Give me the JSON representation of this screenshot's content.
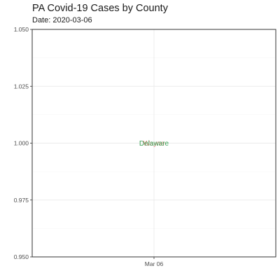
{
  "chart_data": {
    "type": "scatter",
    "title": "PA Covid-19 Cases by County",
    "subtitle": "Date: 2020-03-06",
    "xlabel": "",
    "ylabel": "",
    "ylim": [
      0.95,
      1.05
    ],
    "y_ticks": [
      0.95,
      0.975,
      1.0,
      1.025,
      1.05
    ],
    "y_tick_labels": [
      "0.950",
      "0.975",
      "1.000",
      "1.025",
      "1.050"
    ],
    "x_ticks": [
      "Mar 06"
    ],
    "grid": true,
    "points": [
      {
        "label": "Wayne",
        "x": "Mar 06",
        "y": 1.0,
        "color": "#e8827a"
      },
      {
        "label": "Delaware",
        "x": "Mar 06",
        "y": 1.0,
        "color": "#3aa055"
      }
    ]
  }
}
